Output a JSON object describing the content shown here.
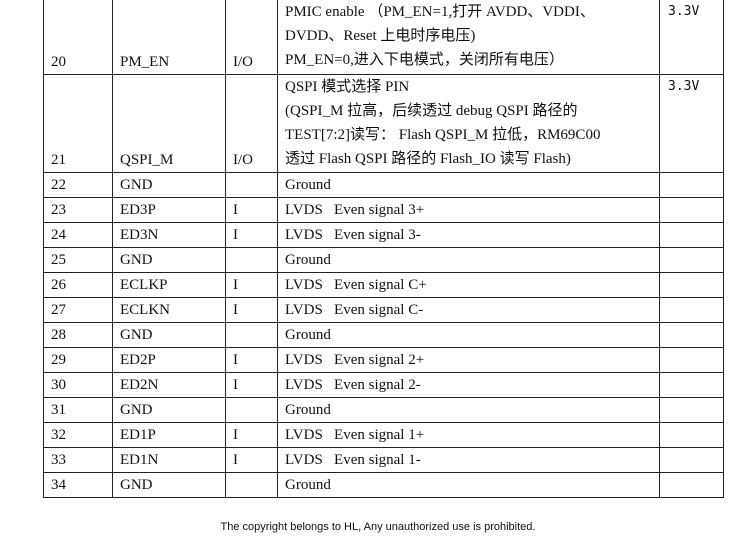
{
  "rows": [
    {
      "no": "20",
      "name": "PM_EN",
      "io": "I/O",
      "desc": [
        "PMIC enable （PM_EN=1,打开 AVDD、VDDI、",
        "DVDD、Reset 上电时序电压)",
        "PM_EN=0,进入下电模式，关闭所有电压）"
      ],
      "volt": "3.3V"
    },
    {
      "no": "21",
      "name": "QSPI_M",
      "io": "I/O",
      "desc": [
        "QSPI 模式选择 PIN",
        "(QSPI_M 拉高，后续透过 debug QSPI 路径的",
        "TEST[7:2]读写： Flash QSPI_M 拉低，RM69C00",
        "透过 Flash QSPI 路径的 Flash_IO 读写 Flash)"
      ],
      "volt": "3.3V"
    },
    {
      "no": "22",
      "name": "GND",
      "io": "",
      "desc": [
        "Ground"
      ],
      "volt": ""
    },
    {
      "no": "23",
      "name": "ED3P",
      "io": "I",
      "desc": [
        "LVDS   Even signal 3+"
      ],
      "volt": ""
    },
    {
      "no": "24",
      "name": "ED3N",
      "io": "I",
      "desc": [
        "LVDS   Even signal 3-"
      ],
      "volt": ""
    },
    {
      "no": "25",
      "name": "GND",
      "io": "",
      "desc": [
        "Ground"
      ],
      "volt": ""
    },
    {
      "no": "26",
      "name": "ECLKP",
      "io": "I",
      "desc": [
        "LVDS   Even signal C+"
      ],
      "volt": ""
    },
    {
      "no": "27",
      "name": "ECLKN",
      "io": "I",
      "desc": [
        "LVDS   Even signal C-"
      ],
      "volt": ""
    },
    {
      "no": "28",
      "name": "GND",
      "io": "",
      "desc": [
        "Ground"
      ],
      "volt": ""
    },
    {
      "no": "29",
      "name": "ED2P",
      "io": "I",
      "desc": [
        "LVDS   Even signal 2+"
      ],
      "volt": ""
    },
    {
      "no": "30",
      "name": "ED2N",
      "io": "I",
      "desc": [
        "LVDS   Even signal 2-"
      ],
      "volt": ""
    },
    {
      "no": "31",
      "name": "GND",
      "io": "",
      "desc": [
        "Ground"
      ],
      "volt": ""
    },
    {
      "no": "32",
      "name": "ED1P",
      "io": "I",
      "desc": [
        "LVDS   Even signal 1+"
      ],
      "volt": ""
    },
    {
      "no": "33",
      "name": "ED1N",
      "io": "I",
      "desc": [
        "LVDS   Even signal 1-"
      ],
      "volt": ""
    },
    {
      "no": "34",
      "name": "GND",
      "io": "",
      "desc": [
        "Ground"
      ],
      "volt": ""
    }
  ],
  "footer": "The copyright belongs to HL, Any unauthorized use is prohibited."
}
